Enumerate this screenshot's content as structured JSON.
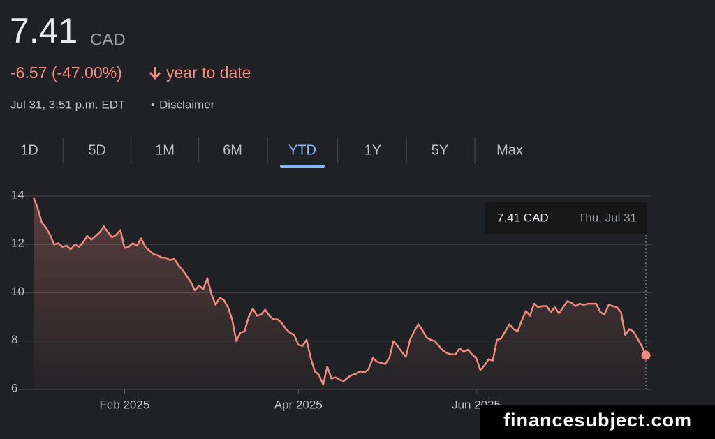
{
  "header": {
    "price": "7.41",
    "currency": "CAD",
    "change": "-6.57 (-47.00%)",
    "period": "year to date",
    "timestamp": "Jul 31, 3:51 p.m. EDT",
    "separator": "•",
    "disclaimer": "Disclaimer"
  },
  "tabs": [
    "1D",
    "5D",
    "1M",
    "6M",
    "YTD",
    "1Y",
    "5Y",
    "Max"
  ],
  "selected_tab": 4,
  "watermark": "financesubject.com",
  "chart_data": {
    "type": "line",
    "color": "#ee8b80",
    "grid": true,
    "ylim": [
      6,
      14
    ],
    "yticks": [
      14,
      12,
      10,
      8,
      6
    ],
    "tooltip": {
      "value": "7.41 CAD",
      "date": "Thu, Jul 31"
    },
    "categories": [
      null,
      null,
      null,
      null,
      null,
      null,
      null,
      null,
      null,
      null,
      null,
      null,
      null,
      null,
      null,
      null,
      null,
      null,
      null,
      null,
      null,
      null,
      "Feb 2025",
      null,
      null,
      null,
      null,
      null,
      null,
      null,
      null,
      null,
      null,
      null,
      null,
      null,
      null,
      null,
      null,
      null,
      null,
      null,
      null,
      null,
      null,
      null,
      null,
      null,
      null,
      null,
      null,
      null,
      null,
      null,
      null,
      null,
      null,
      null,
      null,
      null,
      null,
      null,
      null,
      null,
      "Apr 2025",
      null,
      null,
      null,
      null,
      null,
      null,
      null,
      null,
      null,
      null,
      null,
      null,
      null,
      null,
      null,
      null,
      null,
      null,
      null,
      null,
      null,
      null,
      null,
      null,
      null,
      null,
      null,
      null,
      null,
      null,
      null,
      null,
      null,
      null,
      null,
      null,
      null,
      null,
      null,
      null,
      null,
      null,
      "Jun 2025",
      null,
      null,
      null,
      null,
      null,
      null,
      null,
      null,
      null,
      null,
      null,
      null,
      null,
      null,
      null,
      null,
      null,
      null,
      null,
      null,
      null,
      null,
      null,
      null,
      null,
      null,
      null,
      null,
      null,
      null,
      null,
      null,
      null,
      null,
      null,
      null,
      null,
      null,
      null,
      null,
      null
    ],
    "values": [
      13.95,
      13.5,
      12.9,
      12.7,
      12.4,
      12.0,
      12.05,
      11.9,
      11.95,
      11.8,
      12.0,
      11.9,
      12.1,
      12.35,
      12.2,
      12.35,
      12.5,
      12.75,
      12.5,
      12.3,
      12.4,
      12.6,
      11.85,
      11.9,
      12.05,
      11.95,
      12.25,
      11.9,
      11.75,
      11.6,
      11.55,
      11.45,
      11.45,
      11.35,
      11.4,
      11.15,
      10.95,
      10.7,
      10.45,
      10.1,
      10.3,
      10.15,
      10.6,
      9.95,
      9.5,
      9.8,
      9.7,
      9.4,
      8.9,
      8.0,
      8.35,
      8.4,
      9.0,
      9.35,
      9.05,
      9.1,
      9.3,
      9.05,
      8.9,
      8.9,
      8.75,
      8.5,
      8.35,
      8.25,
      7.85,
      7.8,
      8.05,
      7.3,
      6.75,
      6.6,
      6.2,
      6.95,
      6.45,
      6.5,
      6.4,
      6.35,
      6.5,
      6.6,
      6.65,
      6.75,
      6.7,
      6.85,
      7.3,
      7.15,
      7.1,
      7.05,
      7.3,
      8.0,
      7.8,
      7.55,
      7.35,
      8.05,
      8.4,
      8.7,
      8.45,
      8.15,
      8.05,
      8.0,
      7.8,
      7.6,
      7.5,
      7.45,
      7.45,
      7.7,
      7.55,
      7.65,
      7.45,
      7.3,
      6.8,
      7.0,
      7.25,
      7.2,
      8.05,
      8.1,
      8.4,
      8.7,
      8.5,
      8.4,
      8.85,
      9.25,
      9.05,
      9.55,
      9.4,
      9.45,
      9.45,
      9.2,
      9.4,
      9.15,
      9.4,
      9.65,
      9.6,
      9.45,
      9.55,
      9.5,
      9.55,
      9.55,
      9.55,
      9.2,
      9.1,
      9.5,
      9.45,
      9.4,
      9.2,
      8.25,
      8.5,
      8.4,
      8.1,
      7.8,
      7.41
    ]
  }
}
